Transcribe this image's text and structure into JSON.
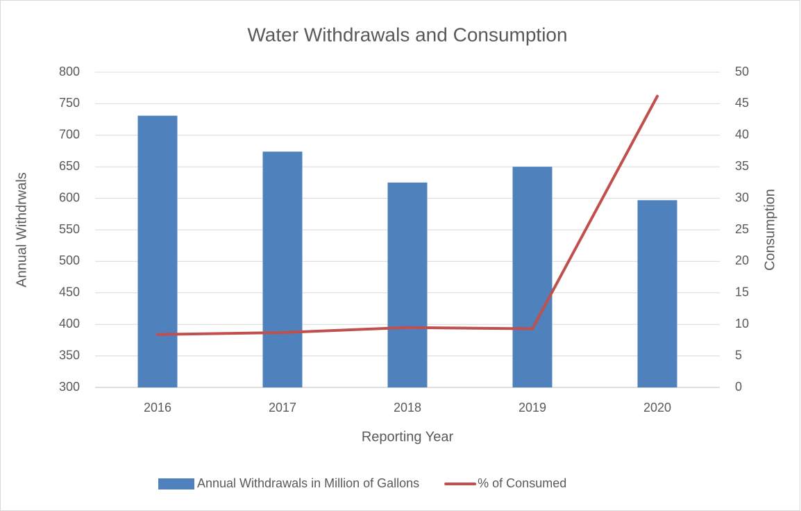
{
  "chart_data": {
    "type": "bar",
    "title": "Water Withdrawals and Consumption",
    "x_label": "Reporting Year",
    "y_label": "Annual Withdrwals",
    "y2_label": "Consumption",
    "categories": [
      "2016",
      "2017",
      "2018",
      "2019",
      "2020"
    ],
    "series": [
      {
        "name": "Annual Withdrawals in Million of Gallons",
        "type": "bar",
        "color": "#4f81bd",
        "values": [
          731,
          674,
          625,
          650,
          597
        ]
      },
      {
        "name": "% of Consumed",
        "type": "line",
        "axis": "y2",
        "color": "#c0504d",
        "values": [
          8.4,
          8.7,
          9.5,
          9.3,
          46.2
        ]
      }
    ],
    "ylim": [
      300,
      800
    ],
    "yticks": [
      300,
      350,
      400,
      450,
      500,
      550,
      600,
      650,
      700,
      750,
      800
    ],
    "y2lim": [
      0,
      50
    ],
    "y2ticks": [
      0,
      5,
      10,
      15,
      20,
      25,
      30,
      35,
      40,
      45,
      50
    ],
    "grid": true,
    "legend": "bottom"
  }
}
